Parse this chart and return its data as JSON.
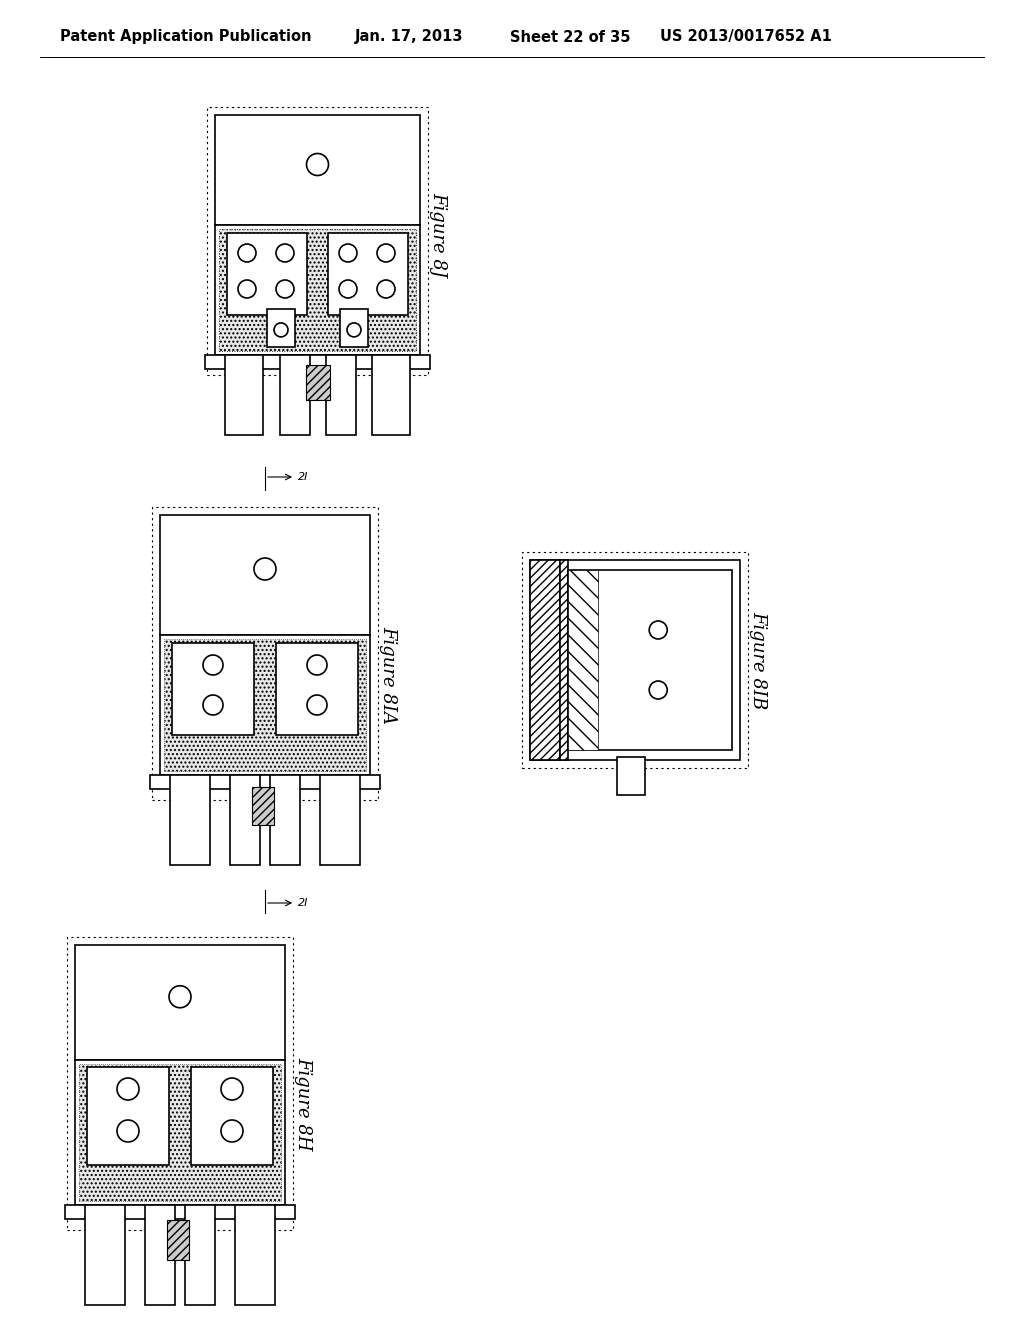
{
  "bg_color": "#ffffff",
  "header_text": "Patent Application Publication",
  "header_date": "Jan. 17, 2013",
  "header_sheet": "Sheet 22 of 35",
  "header_patent": "US 2013/0017652 A1",
  "fig8j_label": "Figure 8J",
  "fig8ia_label": "Figure 8IA",
  "fig8ib_label": "Figure 8IB",
  "fig8h_label": "Figure 8H",
  "line_color": "#000000"
}
